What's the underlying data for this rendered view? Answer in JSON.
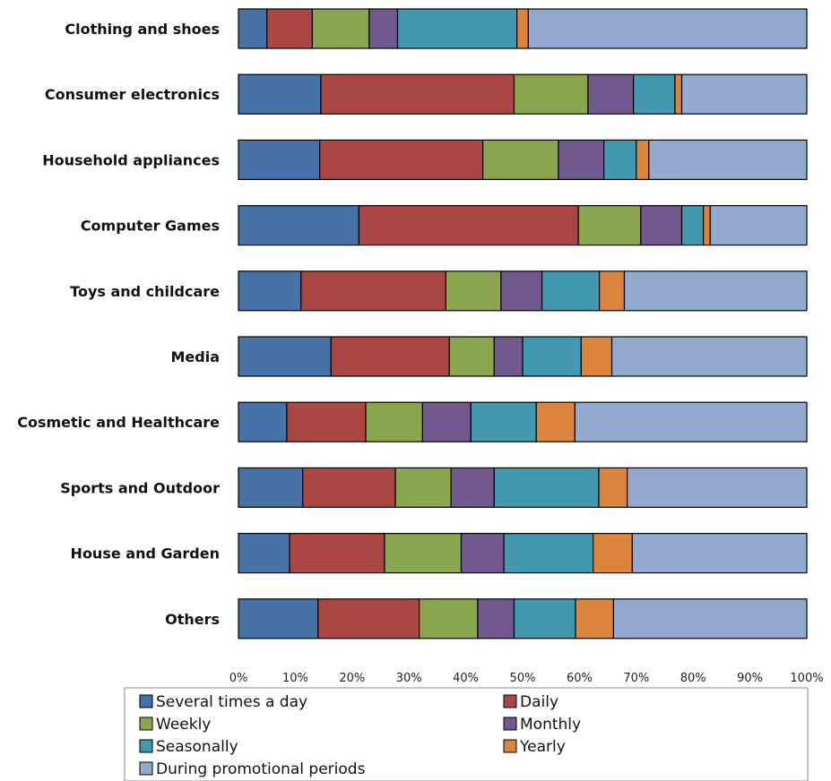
{
  "chart_data": {
    "type": "bar",
    "orientation": "horizontal",
    "stacked": "percent",
    "categories": [
      "Clothing and shoes",
      "Consumer electronics",
      "Household appliances",
      "Computer Games",
      "Toys and childcare",
      "Media",
      "Cosmetic and Healthcare",
      "Sports and Outdoor",
      "House and Garden",
      "Others"
    ],
    "series": [
      {
        "name": "Several times a day",
        "color": "#4572A7",
        "values": [
          5,
          14.5,
          14.3,
          21.2,
          11,
          16.3,
          8.5,
          11.3,
          9,
          14
        ]
      },
      {
        "name": "Daily",
        "color": "#AA4643",
        "values": [
          8,
          34,
          28.7,
          38.6,
          25.5,
          20.8,
          13.9,
          16.3,
          16.7,
          17.8
        ]
      },
      {
        "name": "Weekly",
        "color": "#89A54E",
        "values": [
          10,
          13,
          13.3,
          11,
          9.7,
          7.9,
          10,
          9.8,
          13.5,
          10.3
        ]
      },
      {
        "name": "Monthly",
        "color": "#71588F",
        "values": [
          5,
          8,
          8,
          7.2,
          7.2,
          5,
          8.5,
          7.6,
          7.5,
          6.4
        ]
      },
      {
        "name": "Seasonally",
        "color": "#4198AF",
        "values": [
          21,
          7.3,
          5.7,
          3.8,
          10.1,
          10.3,
          11.5,
          18.4,
          15.7,
          10.8
        ]
      },
      {
        "name": "Yearly",
        "color": "#DB843D",
        "values": [
          2,
          1.2,
          2.2,
          1.2,
          4.4,
          5.4,
          6.8,
          5,
          6.9,
          6.7
        ]
      },
      {
        "name": "During promotional periods",
        "color": "#93A9CF",
        "values": [
          49,
          22,
          27.8,
          17,
          32.1,
          34.3,
          40.8,
          31.6,
          30.7,
          34
        ]
      }
    ],
    "xlim": [
      0,
      100
    ],
    "xticks": [
      "0%",
      "10%",
      "20%",
      "30%",
      "40%",
      "50%",
      "60%",
      "70%",
      "80%",
      "90%",
      "100%"
    ],
    "grid": false,
    "legend_position": "bottom"
  }
}
